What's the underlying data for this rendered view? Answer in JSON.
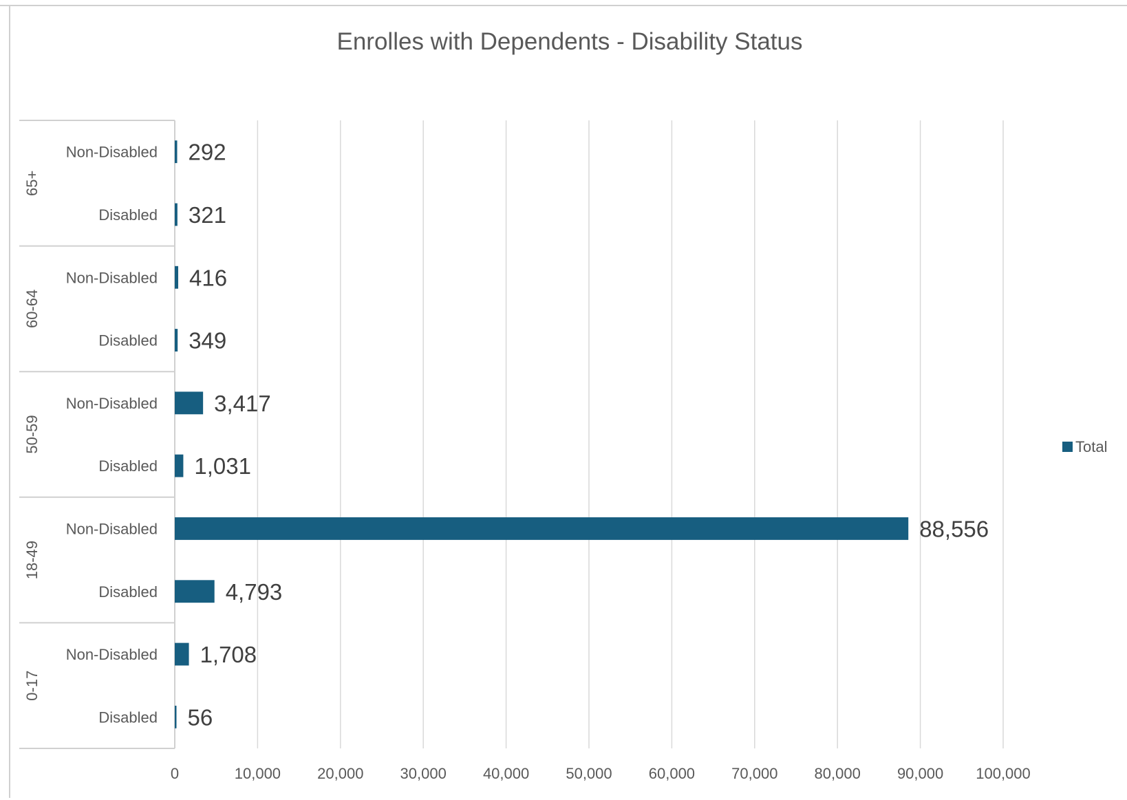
{
  "chart_data": {
    "type": "bar",
    "orientation": "horizontal",
    "title": "Enrolles with Dependents  -  Disability Status",
    "groups": [
      {
        "label": "65+",
        "categories": [
          {
            "label": "Non-Disabled",
            "value": 292,
            "value_label": "292"
          },
          {
            "label": "Disabled",
            "value": 321,
            "value_label": "321"
          }
        ]
      },
      {
        "label": "60-64",
        "categories": [
          {
            "label": "Non-Disabled",
            "value": 416,
            "value_label": "416"
          },
          {
            "label": "Disabled",
            "value": 349,
            "value_label": "349"
          }
        ]
      },
      {
        "label": "50-59",
        "categories": [
          {
            "label": "Non-Disabled",
            "value": 3417,
            "value_label": "3,417"
          },
          {
            "label": "Disabled",
            "value": 1031,
            "value_label": "1,031"
          }
        ]
      },
      {
        "label": "18-49",
        "categories": [
          {
            "label": "Non-Disabled",
            "value": 88556,
            "value_label": "88,556"
          },
          {
            "label": "Disabled",
            "value": 4793,
            "value_label": "4,793"
          }
        ]
      },
      {
        "label": "0-17",
        "categories": [
          {
            "label": "Non-Disabled",
            "value": 1708,
            "value_label": "1,708"
          },
          {
            "label": "Disabled",
            "value": 56,
            "value_label": "56"
          }
        ]
      }
    ],
    "series": [
      {
        "name": "Total",
        "color": "#175e80"
      }
    ],
    "xlim": [
      0,
      100000
    ],
    "x_ticks": [
      0,
      10000,
      20000,
      30000,
      40000,
      50000,
      60000,
      70000,
      80000,
      90000,
      100000
    ],
    "x_tick_labels": [
      "0",
      "10,000",
      "20,000",
      "30,000",
      "40,000",
      "50,000",
      "60,000",
      "70,000",
      "80,000",
      "90,000",
      "100,000"
    ],
    "grid": true,
    "legend": {
      "position": "right",
      "entries": [
        "Total"
      ]
    }
  }
}
